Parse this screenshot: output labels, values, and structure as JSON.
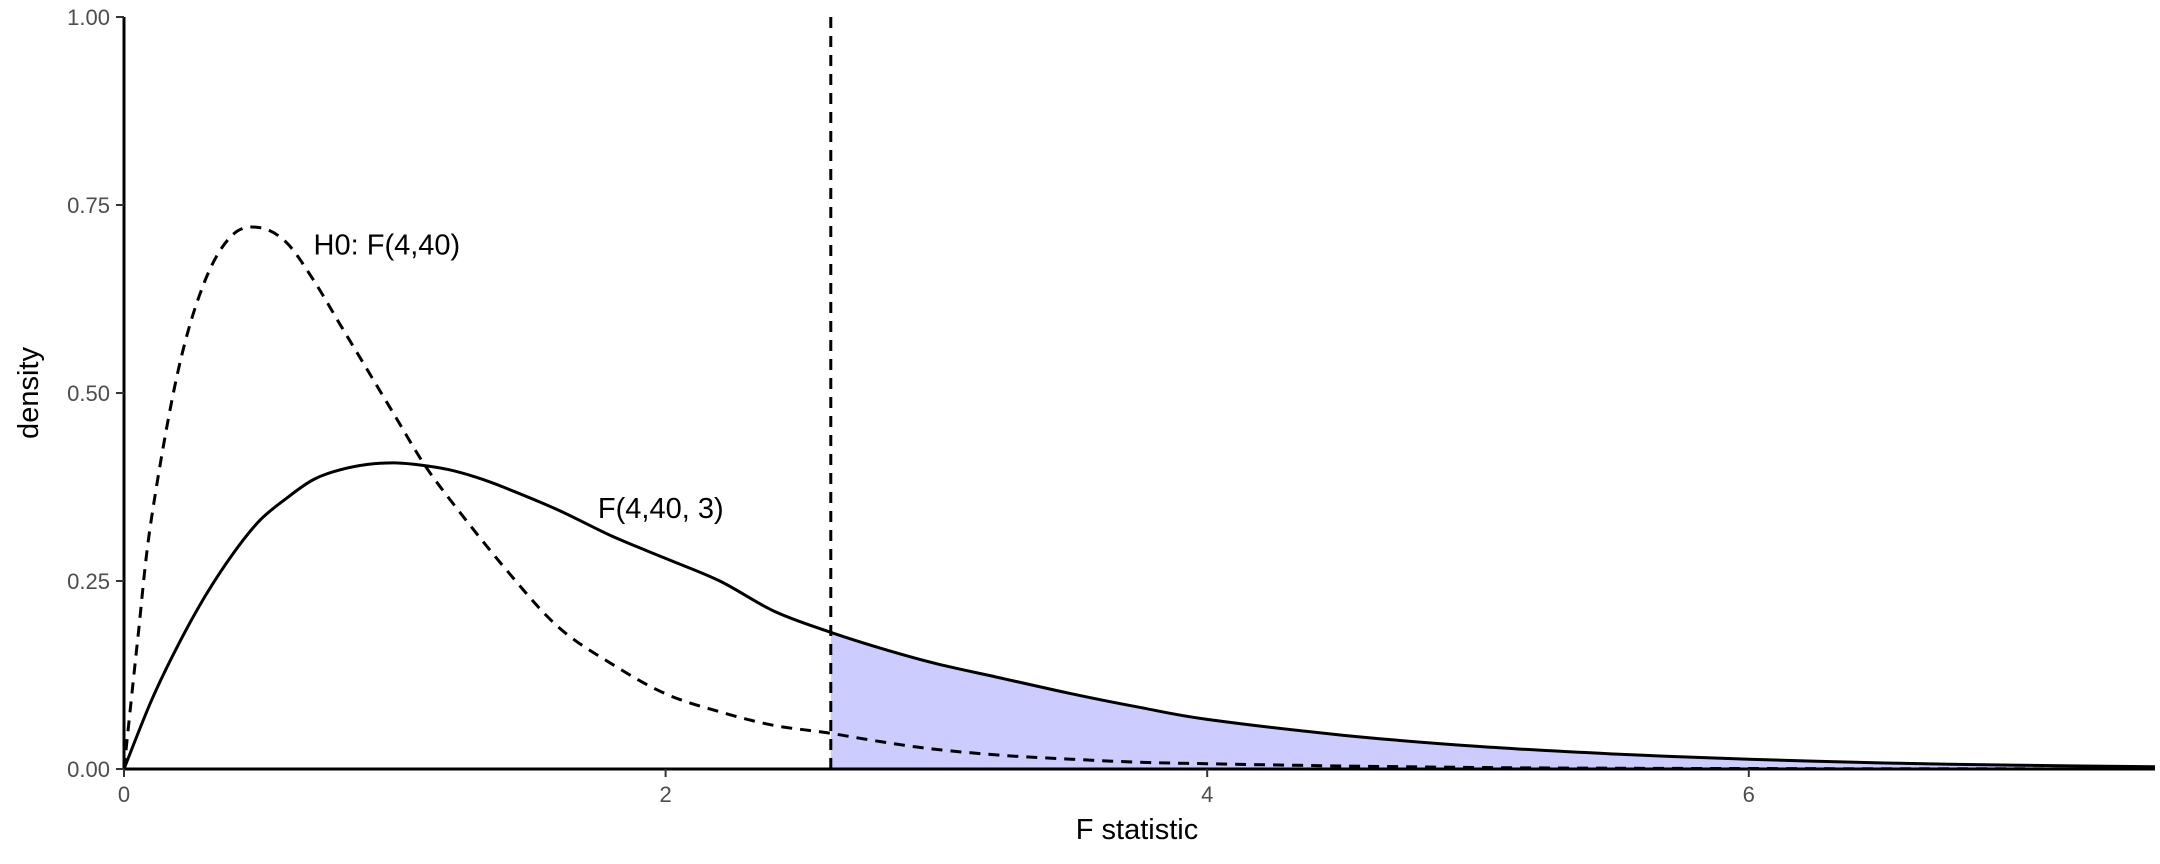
{
  "chart_data": {
    "type": "line",
    "xlabel": "F statistic",
    "ylabel": "density",
    "xlim": [
      0,
      7.5
    ],
    "ylim": [
      0,
      1
    ],
    "x_ticks": [
      0,
      2,
      4,
      6
    ],
    "x_tick_labels": [
      "0",
      "2",
      "4",
      "6"
    ],
    "y_ticks": [
      0,
      0.25,
      0.5,
      0.75,
      1
    ],
    "y_tick_labels": [
      "0.00",
      "0.25",
      "0.50",
      "0.75",
      "1.00"
    ],
    "grid": false,
    "critical_value": 2.61,
    "shade_color": "#ccccff",
    "line_color": "#000000",
    "series": [
      {
        "style": "dashed",
        "x": [
          0,
          0.05,
          0.1,
          0.2,
          0.3,
          0.4,
          0.5,
          0.6,
          0.7,
          0.8,
          0.9,
          1.0,
          1.1,
          1.2,
          1.4,
          1.6,
          1.8,
          2.0,
          2.2,
          2.4,
          2.6,
          2.8,
          3.0,
          3.25,
          3.5,
          3.75,
          4.0,
          4.5,
          5.0,
          5.5,
          6.0,
          6.5,
          7.0,
          7.5
        ],
        "y": [
          0,
          0.17,
          0.33,
          0.53,
          0.65,
          0.71,
          0.72,
          0.7,
          0.65,
          0.59,
          0.53,
          0.47,
          0.41,
          0.36,
          0.27,
          0.19,
          0.14,
          0.1,
          0.076,
          0.058,
          0.048,
          0.036,
          0.026,
          0.018,
          0.013,
          0.009,
          0.007,
          0.004,
          0.002,
          0.001,
          0.0006,
          0.0003,
          0.0002,
          0.0001
        ]
      },
      {
        "style": "solid",
        "x": [
          0,
          0.1,
          0.2,
          0.3,
          0.4,
          0.5,
          0.6,
          0.7,
          0.8,
          0.9,
          1.0,
          1.1,
          1.2,
          1.3,
          1.4,
          1.6,
          1.8,
          2.0,
          2.2,
          2.4,
          2.6,
          2.8,
          3.0,
          3.25,
          3.5,
          3.75,
          4.0,
          4.5,
          5.0,
          5.5,
          6.0,
          6.5,
          7.0,
          7.5
        ],
        "y": [
          0,
          0.09,
          0.165,
          0.23,
          0.285,
          0.33,
          0.36,
          0.385,
          0.398,
          0.405,
          0.407,
          0.404,
          0.398,
          0.388,
          0.375,
          0.345,
          0.31,
          0.28,
          0.25,
          0.21,
          0.183,
          0.16,
          0.14,
          0.12,
          0.1,
          0.082,
          0.066,
          0.045,
          0.03,
          0.02,
          0.013,
          0.008,
          0.005,
          0.003
        ]
      }
    ],
    "annotations": [
      {
        "text": "H0: F(4,40)",
        "x": 0.7,
        "y": 0.7
      },
      {
        "text": "F(4,40, 3)",
        "x": 1.75,
        "y": 0.35
      }
    ]
  }
}
